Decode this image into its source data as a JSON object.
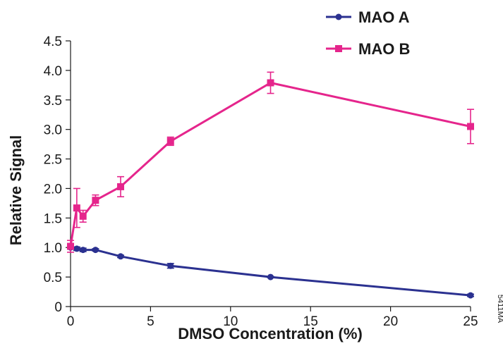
{
  "chart_data": {
    "type": "line",
    "title": "",
    "xlabel": "DMSO Concentration (%)",
    "ylabel": "Relative Signal",
    "xlim": [
      0,
      25
    ],
    "ylim": [
      0,
      4.5
    ],
    "x_ticks": [
      0,
      5,
      10,
      15,
      20,
      25
    ],
    "y_ticks": [
      "0",
      "0.5",
      "1.0",
      "1.5",
      "2.0",
      "2.5",
      "3.0",
      "3.5",
      "4.0",
      "4.5"
    ],
    "grid": false,
    "legend_position": "top-right",
    "series": [
      {
        "name": "MAO A",
        "color": "#2b3190",
        "marker": "circle",
        "x": [
          0,
          0.39,
          0.78,
          1.56,
          3.13,
          6.25,
          12.5,
          25
        ],
        "y": [
          1.0,
          0.98,
          0.96,
          0.96,
          0.85,
          0.69,
          0.5,
          0.19
        ],
        "err": [
          0.03,
          0.03,
          0.03,
          0.02,
          0.02,
          0.04,
          0.01,
          0.02
        ]
      },
      {
        "name": "MAO B",
        "color": "#e5258c",
        "marker": "square",
        "x": [
          0,
          0.39,
          0.78,
          1.56,
          3.13,
          6.25,
          12.5,
          25
        ],
        "y": [
          1.02,
          1.67,
          1.53,
          1.8,
          2.03,
          2.8,
          3.79,
          3.05
        ],
        "err": [
          0.1,
          0.33,
          0.1,
          0.09,
          0.17,
          0.07,
          0.18,
          0.29
        ]
      }
    ],
    "annotation": "5411MA"
  }
}
